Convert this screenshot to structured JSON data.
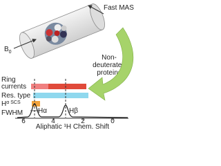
{
  "labels": {
    "fast_mas": "Fast MAS",
    "b0": "B",
    "b0_sub": "0",
    "protein_line1": "Non-",
    "protein_line2": "deuterated",
    "protein_line3": "proteins",
    "ring_line1": "Ring",
    "ring_line2": "currents",
    "res_type": "Res. type",
    "ha_scs_h": "H",
    "ha_scs_rest": "α SCS",
    "fwhm": "FWHM",
    "peak_a": "Hα",
    "peak_b": "Hβ"
  },
  "axis": {
    "ticks": [
      "6",
      "4",
      "2",
      "0"
    ],
    "label": "Aliphatic ¹H Chem. Shift"
  }
}
